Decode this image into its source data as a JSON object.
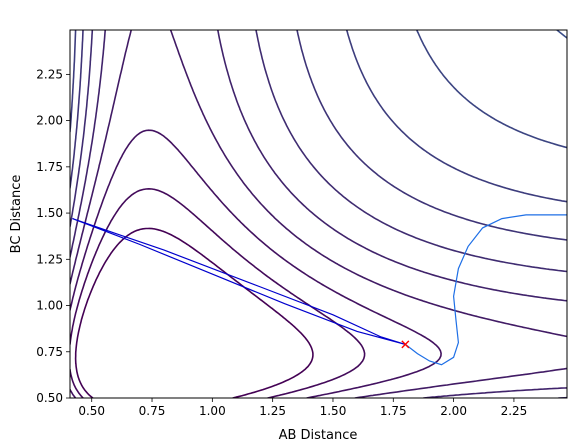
{
  "chart_data": {
    "type": "contour",
    "title": "",
    "xlabel": "AB Distance",
    "ylabel": "BC Distance",
    "xlim": [
      0.41,
      2.47
    ],
    "ylim": [
      0.5,
      2.49
    ],
    "xticks": [
      0.5,
      0.75,
      1.0,
      1.25,
      1.5,
      1.75,
      2.0,
      2.25
    ],
    "xtick_labels": [
      "0.50",
      "0.75",
      "1.00",
      "1.25",
      "1.50",
      "1.75",
      "2.00",
      "2.25"
    ],
    "yticks": [
      0.5,
      0.75,
      1.0,
      1.25,
      1.5,
      1.75,
      2.0,
      2.25
    ],
    "ytick_labels": [
      "0.50",
      "0.75",
      "1.00",
      "1.25",
      "1.50",
      "1.75",
      "2.00",
      "2.25"
    ],
    "grid": false,
    "colormap": "viridis",
    "colormap_stops": [
      "#440154",
      "#3b528b",
      "#21918c",
      "#5ec962",
      "#fde725"
    ],
    "surface": {
      "well_depth": 1.0,
      "r_equilibrium": 0.74,
      "alpha": 1.9,
      "dissociation_level": 0.0,
      "contour_levels": [
        -1.5,
        -1.35,
        -1.2,
        -1.05,
        -0.9,
        -0.75,
        -0.6,
        -0.45,
        -0.3,
        -0.15,
        0.0,
        0.15,
        0.3,
        0.45,
        0.6,
        0.75,
        0.9,
        1.05,
        1.2,
        1.35,
        1.5,
        1.65,
        1.8,
        1.95,
        2.1,
        2.25,
        2.4,
        2.55,
        2.7,
        2.85,
        3.0,
        3.15,
        3.3,
        3.45,
        3.6,
        3.75,
        3.9,
        4.05,
        4.2
      ]
    },
    "trajectories": [
      {
        "color": "#0000cd",
        "x": [
          0.42,
          0.8,
          1.2,
          1.5,
          1.7,
          1.8,
          1.6,
          1.3,
          1.0,
          0.7,
          0.42
        ],
        "y": [
          1.47,
          1.3,
          1.1,
          0.95,
          0.83,
          0.79,
          0.86,
          1.01,
          1.17,
          1.33,
          1.47
        ]
      },
      {
        "color": "#1e6fe6",
        "x": [
          1.8,
          1.85,
          1.9,
          1.95,
          2.0,
          2.02,
          2.01,
          2.0,
          2.02,
          2.06,
          2.12,
          2.2,
          2.3,
          2.4,
          2.47
        ],
        "y": [
          0.79,
          0.74,
          0.7,
          0.68,
          0.72,
          0.8,
          0.92,
          1.05,
          1.2,
          1.32,
          1.42,
          1.47,
          1.49,
          1.49,
          1.49
        ]
      }
    ],
    "marker": {
      "symbol": "x",
      "color": "#ff0000",
      "x": 1.8,
      "y": 0.79
    }
  }
}
